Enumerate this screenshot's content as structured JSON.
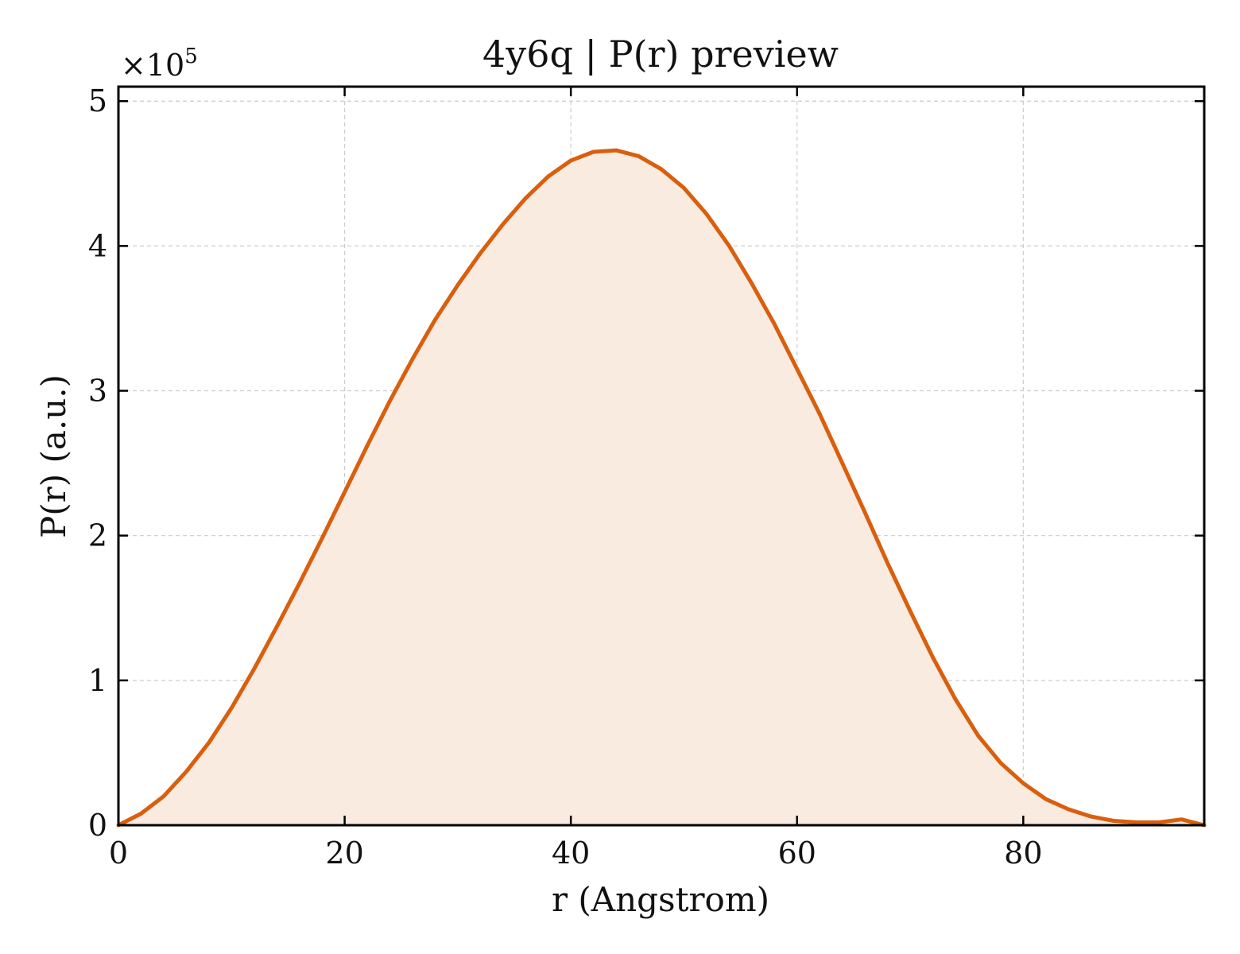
{
  "chart_data": {
    "type": "area",
    "title": "4y6q | P(r) preview",
    "xlabel": "r (Angstrom)",
    "ylabel": "P(r) (a.u.)",
    "y_multiplier_base": "×10",
    "y_multiplier_exp": "5",
    "xlim": [
      0,
      96
    ],
    "ylim": [
      0,
      5.1
    ],
    "xticks": [
      0,
      20,
      40,
      60,
      80
    ],
    "xtick_labels": [
      "0",
      "20",
      "40",
      "60",
      "80"
    ],
    "yticks": [
      0,
      1,
      2,
      3,
      4,
      5
    ],
    "ytick_labels": [
      "0",
      "1",
      "2",
      "3",
      "4",
      "5"
    ],
    "grid": true,
    "line_color": "#d95f0e",
    "fill_color": "#f9ebe0",
    "series": [
      {
        "x": [
          0,
          2,
          4,
          6,
          8,
          10,
          12,
          14,
          16,
          18,
          20,
          22,
          24,
          26,
          28,
          30,
          32,
          34,
          36,
          38,
          40,
          42,
          44,
          46,
          48,
          50,
          52,
          54,
          56,
          58,
          60,
          62,
          64,
          66,
          68,
          70,
          72,
          74,
          76,
          78,
          80,
          82,
          84,
          86,
          88,
          90,
          92,
          94,
          96
        ],
        "y": [
          0.0,
          0.08,
          0.2,
          0.37,
          0.57,
          0.81,
          1.08,
          1.37,
          1.67,
          1.98,
          2.3,
          2.62,
          2.93,
          3.22,
          3.49,
          3.73,
          3.95,
          4.15,
          4.33,
          4.48,
          4.59,
          4.65,
          4.66,
          4.62,
          4.53,
          4.4,
          4.22,
          4.0,
          3.74,
          3.46,
          3.15,
          2.84,
          2.5,
          2.16,
          1.81,
          1.48,
          1.16,
          0.87,
          0.62,
          0.43,
          0.29,
          0.18,
          0.11,
          0.06,
          0.03,
          0.02,
          0.02,
          0.04,
          0.0
        ]
      }
    ]
  }
}
